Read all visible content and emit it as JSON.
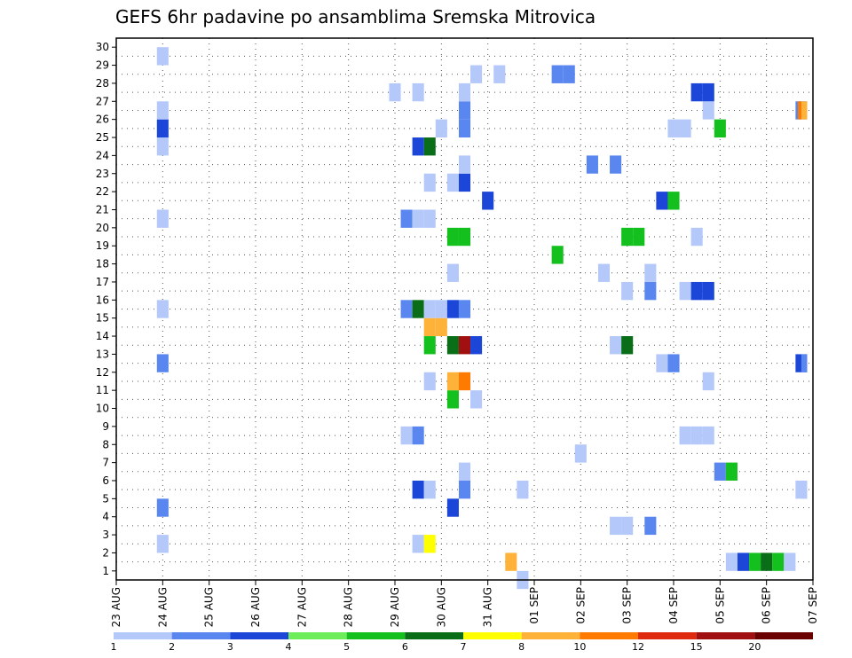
{
  "chart_data": {
    "type": "heatmap",
    "title": "GEFS 6hr padavine po ansamblima Sremska Mitrovica",
    "x_labels": [
      "23 AUG",
      "24 AUG",
      "25 AUG",
      "26 AUG",
      "27 AUG",
      "28 AUG",
      "29 AUG",
      "30 AUG",
      "31 AUG",
      "01 SEP",
      "02 SEP",
      "03 SEP",
      "04 SEP",
      "05 SEP",
      "06 SEP",
      "07 SEP"
    ],
    "y_labels": [
      "1",
      "2",
      "3",
      "4",
      "5",
      "6",
      "7",
      "8",
      "9",
      "10",
      "11",
      "12",
      "13",
      "14",
      "15",
      "16",
      "17",
      "18",
      "19",
      "20",
      "21",
      "22",
      "23",
      "24",
      "25",
      "26",
      "27",
      "28",
      "29",
      "30"
    ],
    "xlim": [
      0,
      60
    ],
    "ylim": [
      0,
      30
    ],
    "grid": true,
    "legend": {
      "placement": "bottom",
      "labels": [
        "1",
        "2",
        "3",
        "4",
        "5",
        "6",
        "7",
        "8",
        "10",
        "12",
        "15",
        "20"
      ],
      "colors": [
        "#b4c8fa",
        "#5a87ef",
        "#1b46d8",
        "#6ded5a",
        "#14c01e",
        "#0a6e18",
        "#ffff00",
        "#ffb23a",
        "#ff7a00",
        "#e02a10",
        "#a01010",
        "#6a0000"
      ]
    },
    "cells": [
      {
        "x": 4,
        "y": 1,
        "v": 1
      },
      {
        "x": 4,
        "y": 3,
        "v": 2
      },
      {
        "x": 4,
        "y": 11,
        "v": 2
      },
      {
        "x": 4,
        "y": 14,
        "v": 1
      },
      {
        "x": 4,
        "y": 19,
        "v": 1
      },
      {
        "x": 4,
        "y": 23,
        "v": 1
      },
      {
        "x": 4,
        "y": 24,
        "v": 3
      },
      {
        "x": 4,
        "y": 25,
        "v": 1
      },
      {
        "x": 4,
        "y": 28,
        "v": 1
      },
      {
        "x": 24,
        "y": 26,
        "v": 1
      },
      {
        "x": 25,
        "y": 7,
        "v": 1
      },
      {
        "x": 25,
        "y": 14,
        "v": 2
      },
      {
        "x": 25,
        "y": 19,
        "v": 2
      },
      {
        "x": 26,
        "y": 1,
        "v": 1
      },
      {
        "x": 26,
        "y": 4,
        "v": 3
      },
      {
        "x": 26,
        "y": 7,
        "v": 2
      },
      {
        "x": 26,
        "y": 14,
        "v": 6
      },
      {
        "x": 26,
        "y": 19,
        "v": 1
      },
      {
        "x": 26,
        "y": 23,
        "v": 3
      },
      {
        "x": 26,
        "y": 26,
        "v": 1
      },
      {
        "x": 27,
        "y": 1,
        "v": 7
      },
      {
        "x": 27,
        "y": 4,
        "v": 1
      },
      {
        "x": 27,
        "y": 10,
        "v": 1
      },
      {
        "x": 27,
        "y": 12,
        "v": 5
      },
      {
        "x": 27,
        "y": 13,
        "v": 8
      },
      {
        "x": 27,
        "y": 14,
        "v": 1
      },
      {
        "x": 27,
        "y": 19,
        "v": 1
      },
      {
        "x": 27,
        "y": 21,
        "v": 1
      },
      {
        "x": 27,
        "y": 23,
        "v": 6
      },
      {
        "x": 28,
        "y": 13,
        "v": 8
      },
      {
        "x": 28,
        "y": 14,
        "v": 1
      },
      {
        "x": 28,
        "y": 24,
        "v": 1
      },
      {
        "x": 29,
        "y": 3,
        "v": 3
      },
      {
        "x": 29,
        "y": 9,
        "v": 5
      },
      {
        "x": 29,
        "y": 10,
        "v": 8
      },
      {
        "x": 29,
        "y": 12,
        "v": 6
      },
      {
        "x": 29,
        "y": 14,
        "v": 3
      },
      {
        "x": 29,
        "y": 16,
        "v": 1
      },
      {
        "x": 29,
        "y": 18,
        "v": 5
      },
      {
        "x": 29,
        "y": 21,
        "v": 1
      },
      {
        "x": 30,
        "y": 4,
        "v": 2
      },
      {
        "x": 30,
        "y": 5,
        "v": 1
      },
      {
        "x": 30,
        "y": 10,
        "v": 10
      },
      {
        "x": 30,
        "y": 12,
        "v": 15
      },
      {
        "x": 30,
        "y": 14,
        "v": 2
      },
      {
        "x": 30,
        "y": 18,
        "v": 5
      },
      {
        "x": 30,
        "y": 21,
        "v": 3
      },
      {
        "x": 30,
        "y": 22,
        "v": 1
      },
      {
        "x": 30,
        "y": 24,
        "v": 2
      },
      {
        "x": 30,
        "y": 25,
        "v": 2
      },
      {
        "x": 30,
        "y": 26,
        "v": 1
      },
      {
        "x": 31,
        "y": 9,
        "v": 1
      },
      {
        "x": 31,
        "y": 12,
        "v": 3
      },
      {
        "x": 31,
        "y": 27,
        "v": 1
      },
      {
        "x": 32,
        "y": 20,
        "v": 3
      },
      {
        "x": 33,
        "y": 27,
        "v": 1
      },
      {
        "x": 34,
        "y": 0,
        "v": 8
      },
      {
        "x": 35,
        "y": -1,
        "v": 1
      },
      {
        "x": 35,
        "y": 4,
        "v": 1
      },
      {
        "x": 38,
        "y": 17,
        "v": 5
      },
      {
        "x": 38,
        "y": 27,
        "v": 2
      },
      {
        "x": 39,
        "y": 27,
        "v": 2
      },
      {
        "x": 40,
        "y": 6,
        "v": 1
      },
      {
        "x": 41,
        "y": 22,
        "v": 2
      },
      {
        "x": 42,
        "y": 16,
        "v": 1
      },
      {
        "x": 43,
        "y": 2,
        "v": 1
      },
      {
        "x": 43,
        "y": 12,
        "v": 1
      },
      {
        "x": 43,
        "y": 22,
        "v": 2
      },
      {
        "x": 44,
        "y": 2,
        "v": 1
      },
      {
        "x": 44,
        "y": 12,
        "v": 6
      },
      {
        "x": 44,
        "y": 15,
        "v": 1
      },
      {
        "x": 44,
        "y": 18,
        "v": 5
      },
      {
        "x": 45,
        "y": 18,
        "v": 5
      },
      {
        "x": 46,
        "y": 2,
        "v": 2
      },
      {
        "x": 46,
        "y": 15,
        "v": 2
      },
      {
        "x": 46,
        "y": 16,
        "v": 1
      },
      {
        "x": 47,
        "y": 11,
        "v": 1
      },
      {
        "x": 47,
        "y": 20,
        "v": 3
      },
      {
        "x": 48,
        "y": 11,
        "v": 2
      },
      {
        "x": 48,
        "y": 20,
        "v": 5
      },
      {
        "x": 48,
        "y": 24,
        "v": 1
      },
      {
        "x": 49,
        "y": 7,
        "v": 1
      },
      {
        "x": 49,
        "y": 15,
        "v": 1
      },
      {
        "x": 49,
        "y": 24,
        "v": 1
      },
      {
        "x": 50,
        "y": 7,
        "v": 1
      },
      {
        "x": 50,
        "y": 15,
        "v": 3
      },
      {
        "x": 50,
        "y": 18,
        "v": 1
      },
      {
        "x": 50,
        "y": 26,
        "v": 3
      },
      {
        "x": 51,
        "y": 7,
        "v": 1
      },
      {
        "x": 51,
        "y": 10,
        "v": 1
      },
      {
        "x": 51,
        "y": 15,
        "v": 3
      },
      {
        "x": 51,
        "y": 25,
        "v": 1
      },
      {
        "x": 51,
        "y": 26,
        "v": 3
      },
      {
        "x": 52,
        "y": 5,
        "v": 2
      },
      {
        "x": 52,
        "y": 24,
        "v": 5
      },
      {
        "x": 53,
        "y": 0,
        "v": 1
      },
      {
        "x": 53,
        "y": 5,
        "v": 5
      },
      {
        "x": 54,
        "y": 0,
        "v": 3
      },
      {
        "x": 55,
        "y": 0,
        "v": 5
      },
      {
        "x": 56,
        "y": 0,
        "v": 6
      },
      {
        "x": 57,
        "y": 0,
        "v": 5
      },
      {
        "x": 58,
        "y": 0,
        "v": 1
      },
      {
        "x": 59,
        "y": 4,
        "v": 1
      },
      {
        "x": 59,
        "y": 11,
        "v": 3
      },
      {
        "x": 59,
        "y": 25,
        "v": 2
      }
    ],
    "wide_cells": [
      {
        "x": 59.5,
        "y": 4,
        "v": 1
      },
      {
        "x": 59.5,
        "y": 11,
        "v": 2
      },
      {
        "x": 59.5,
        "y": 25,
        "v": 8
      }
    ],
    "extra_cells": [
      {
        "x": 59.2,
        "y": 25,
        "v": 10
      }
    ]
  }
}
